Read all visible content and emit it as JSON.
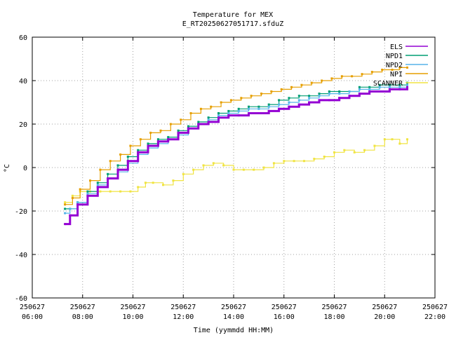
{
  "chart_data": {
    "type": "line",
    "title": "Temperature for MEX",
    "subtitle": "E_RT20250627051717.sfduZ",
    "xlabel": "Time (yymmdd HH:MM)",
    "ylabel": "°C",
    "xlim": [
      "2025-06-27 06:00",
      "2025-06-27 22:00"
    ],
    "ylim": [
      -60,
      60
    ],
    "x_ticks": [
      {
        "date": "250627",
        "time": "06:00",
        "hour": 6
      },
      {
        "date": "250627",
        "time": "08:00",
        "hour": 8
      },
      {
        "date": "250627",
        "time": "10:00",
        "hour": 10
      },
      {
        "date": "250627",
        "time": "12:00",
        "hour": 12
      },
      {
        "date": "250627",
        "time": "14:00",
        "hour": 14
      },
      {
        "date": "250627",
        "time": "16:00",
        "hour": 16
      },
      {
        "date": "250627",
        "time": "18:00",
        "hour": 18
      },
      {
        "date": "250627",
        "time": "20:00",
        "hour": 20
      },
      {
        "date": "250627",
        "time": "22:00",
        "hour": 22
      }
    ],
    "y_ticks": [
      -60,
      -40,
      -20,
      0,
      20,
      40,
      60
    ],
    "grid": true,
    "legend_position": "top-right",
    "series": [
      {
        "name": "ELS",
        "color": "#9400d3",
        "points": [
          [
            7.3,
            -26
          ],
          [
            7.5,
            -22
          ],
          [
            7.8,
            -17
          ],
          [
            8.2,
            -13
          ],
          [
            8.6,
            -9
          ],
          [
            9.0,
            -5
          ],
          [
            9.4,
            -1
          ],
          [
            9.8,
            3
          ],
          [
            10.2,
            7
          ],
          [
            10.6,
            10
          ],
          [
            11.0,
            12
          ],
          [
            11.4,
            13
          ],
          [
            11.8,
            16
          ],
          [
            12.2,
            18
          ],
          [
            12.6,
            20
          ],
          [
            13.0,
            21
          ],
          [
            13.4,
            23
          ],
          [
            13.8,
            24
          ],
          [
            14.2,
            24
          ],
          [
            14.6,
            25
          ],
          [
            15.0,
            25
          ],
          [
            15.4,
            26
          ],
          [
            15.8,
            27
          ],
          [
            16.2,
            28
          ],
          [
            16.6,
            29
          ],
          [
            17.0,
            30
          ],
          [
            17.4,
            31
          ],
          [
            17.8,
            31
          ],
          [
            18.2,
            32
          ],
          [
            18.6,
            33
          ],
          [
            19.0,
            34
          ],
          [
            19.4,
            35
          ],
          [
            19.8,
            35
          ],
          [
            20.2,
            36
          ],
          [
            20.6,
            36
          ],
          [
            20.9,
            37
          ]
        ]
      },
      {
        "name": "NPD1",
        "color": "#009e73",
        "points": [
          [
            7.3,
            -19
          ],
          [
            7.5,
            -19
          ],
          [
            7.8,
            -16
          ],
          [
            8.2,
            -11
          ],
          [
            8.6,
            -7
          ],
          [
            9.0,
            -3
          ],
          [
            9.4,
            1
          ],
          [
            9.8,
            5
          ],
          [
            10.2,
            8
          ],
          [
            10.6,
            11
          ],
          [
            11.0,
            13
          ],
          [
            11.4,
            14
          ],
          [
            11.8,
            17
          ],
          [
            12.2,
            19
          ],
          [
            12.6,
            21
          ],
          [
            13.0,
            23
          ],
          [
            13.4,
            25
          ],
          [
            13.8,
            26
          ],
          [
            14.2,
            27
          ],
          [
            14.6,
            28
          ],
          [
            15.0,
            28
          ],
          [
            15.4,
            29
          ],
          [
            15.8,
            31
          ],
          [
            16.2,
            32
          ],
          [
            16.6,
            33
          ],
          [
            17.0,
            33
          ],
          [
            17.4,
            34
          ],
          [
            17.8,
            35
          ],
          [
            18.2,
            35
          ],
          [
            18.6,
            35
          ],
          [
            19.0,
            37
          ],
          [
            19.4,
            37
          ],
          [
            19.8,
            38
          ],
          [
            20.2,
            38
          ],
          [
            20.6,
            38
          ],
          [
            20.9,
            39
          ]
        ]
      },
      {
        "name": "NPD2",
        "color": "#56b4e9",
        "points": [
          [
            7.3,
            -21
          ],
          [
            7.5,
            -19
          ],
          [
            7.8,
            -16
          ],
          [
            8.2,
            -12
          ],
          [
            8.6,
            -8
          ],
          [
            9.0,
            -5
          ],
          [
            9.4,
            -2
          ],
          [
            9.8,
            2
          ],
          [
            10.2,
            6
          ],
          [
            10.6,
            9
          ],
          [
            11.0,
            11
          ],
          [
            11.4,
            13
          ],
          [
            11.8,
            15
          ],
          [
            12.2,
            18
          ],
          [
            12.6,
            20
          ],
          [
            13.0,
            22
          ],
          [
            13.4,
            24
          ],
          [
            13.8,
            25
          ],
          [
            14.2,
            26
          ],
          [
            14.6,
            27
          ],
          [
            15.0,
            27
          ],
          [
            15.4,
            28
          ],
          [
            15.8,
            29
          ],
          [
            16.2,
            30
          ],
          [
            16.6,
            31
          ],
          [
            17.0,
            32
          ],
          [
            17.4,
            33
          ],
          [
            17.8,
            34
          ],
          [
            18.2,
            34
          ],
          [
            18.6,
            35
          ],
          [
            19.0,
            36
          ],
          [
            19.4,
            36
          ],
          [
            19.8,
            37
          ],
          [
            20.2,
            37
          ],
          [
            20.6,
            37
          ],
          [
            20.9,
            38
          ]
        ]
      },
      {
        "name": "NPI",
        "color": "#e69f00",
        "points": [
          [
            7.3,
            -17
          ],
          [
            7.6,
            -14
          ],
          [
            7.9,
            -10
          ],
          [
            8.3,
            -6
          ],
          [
            8.7,
            -1
          ],
          [
            9.1,
            3
          ],
          [
            9.5,
            6
          ],
          [
            9.9,
            10
          ],
          [
            10.3,
            13
          ],
          [
            10.7,
            16
          ],
          [
            11.1,
            17
          ],
          [
            11.5,
            20
          ],
          [
            11.9,
            22
          ],
          [
            12.3,
            25
          ],
          [
            12.7,
            27
          ],
          [
            13.1,
            28
          ],
          [
            13.5,
            30
          ],
          [
            13.9,
            31
          ],
          [
            14.3,
            32
          ],
          [
            14.7,
            33
          ],
          [
            15.1,
            34
          ],
          [
            15.5,
            35
          ],
          [
            15.9,
            36
          ],
          [
            16.3,
            37
          ],
          [
            16.7,
            38
          ],
          [
            17.1,
            39
          ],
          [
            17.5,
            40
          ],
          [
            17.9,
            41
          ],
          [
            18.3,
            42
          ],
          [
            18.7,
            42
          ],
          [
            19.1,
            43
          ],
          [
            19.5,
            44
          ],
          [
            19.9,
            45
          ],
          [
            20.3,
            45
          ],
          [
            20.6,
            46
          ],
          [
            20.9,
            46
          ]
        ]
      },
      {
        "name": "SCANNER",
        "color": "#f0e442",
        "points": [
          [
            7.3,
            -16
          ],
          [
            7.6,
            -13
          ],
          [
            7.9,
            -11
          ],
          [
            8.3,
            -11
          ],
          [
            8.7,
            -11
          ],
          [
            9.1,
            -11
          ],
          [
            9.5,
            -11
          ],
          [
            9.9,
            -11
          ],
          [
            10.2,
            -9
          ],
          [
            10.5,
            -7
          ],
          [
            10.8,
            -7
          ],
          [
            11.2,
            -8
          ],
          [
            11.6,
            -6
          ],
          [
            12.0,
            -3
          ],
          [
            12.4,
            -1
          ],
          [
            12.8,
            1
          ],
          [
            13.2,
            2
          ],
          [
            13.6,
            1
          ],
          [
            14.0,
            -1
          ],
          [
            14.4,
            -1
          ],
          [
            14.8,
            -1
          ],
          [
            15.2,
            0
          ],
          [
            15.6,
            2
          ],
          [
            16.0,
            3
          ],
          [
            16.4,
            3
          ],
          [
            16.8,
            3
          ],
          [
            17.2,
            4
          ],
          [
            17.6,
            5
          ],
          [
            18.0,
            7
          ],
          [
            18.4,
            8
          ],
          [
            18.8,
            7
          ],
          [
            19.2,
            8
          ],
          [
            19.6,
            10
          ],
          [
            20.0,
            13
          ],
          [
            20.3,
            13
          ],
          [
            20.6,
            11
          ],
          [
            20.9,
            13
          ]
        ]
      }
    ]
  }
}
